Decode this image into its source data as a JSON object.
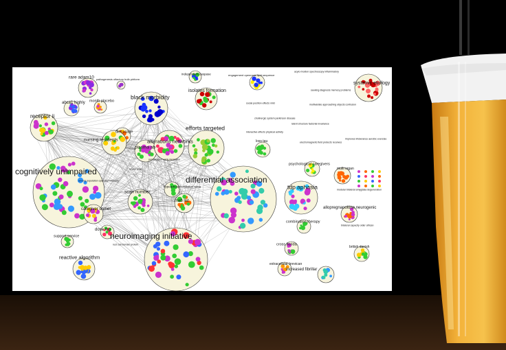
{
  "scene": {
    "background_color": "#000000",
    "glass": "beer-glass-icon"
  },
  "network": {
    "clusters": [
      {
        "id": "c1",
        "label": "rare adam10",
        "size": "m",
        "colors": [
          "#8a2be2",
          "#cc33cc"
        ]
      },
      {
        "id": "c2",
        "label": "pathogenesis olfactory bulb piriform",
        "size": "xs",
        "colors": [
          "#9933cc"
        ]
      },
      {
        "id": "c3",
        "label": "abca1 highly",
        "size": "s",
        "colors": [
          "#8a2be2",
          "#3366ff"
        ]
      },
      {
        "id": "c4",
        "label": "month placebo",
        "size": "s",
        "colors": [
          "#ff9900",
          "#cc33cc"
        ]
      },
      {
        "id": "c5",
        "label": "black morbidity",
        "size": "l",
        "colors": [
          "#1a33ff",
          "#0000cc"
        ]
      },
      {
        "id": "c6",
        "label": "receptor ii",
        "size": "l",
        "colors": [
          "#33cc33",
          "#cc33cc",
          "#ffcc00"
        ]
      },
      {
        "id": "c7",
        "label": "diet usage",
        "size": "s",
        "colors": [
          "#ffcc00",
          "#ff6600"
        ]
      },
      {
        "id": "c8",
        "label": "nursing residents",
        "size": "m",
        "colors": [
          "#33cc33",
          "#ffcc00"
        ]
      },
      {
        "id": "c9",
        "label": "plasma ab",
        "size": "m",
        "colors": [
          "#33cc33",
          "#cc33cc"
        ]
      },
      {
        "id": "c10",
        "label": "alterations networks",
        "size": "l",
        "colors": [
          "#ff3366",
          "#cc33cc",
          "#33cc33"
        ]
      },
      {
        "id": "c11",
        "label": "efforts targeted",
        "size": "l",
        "colors": [
          "#33cc33",
          "#99cc33"
        ]
      },
      {
        "id": "c12",
        "label": "isolates formation",
        "size": "m",
        "colors": [
          "#cc0000",
          "#33cc33"
        ]
      },
      {
        "id": "c13",
        "label": "independent caspase",
        "size": "s",
        "colors": [
          "#1a33ff",
          "#33cc33"
        ]
      },
      {
        "id": "c14",
        "label": "engagement openness lipid sequence",
        "size": "s",
        "colors": [
          "#ffee00",
          "#1a33ff"
        ]
      },
      {
        "id": "c15",
        "label": "cognitively unimpaired",
        "size": "xl",
        "colors": [
          "#cc33cc",
          "#33cc33",
          "#3399ff"
        ]
      },
      {
        "id": "c16",
        "label": "differential association",
        "size": "xl",
        "colors": [
          "#33ccaa",
          "#3399ff",
          "#cc33cc"
        ]
      },
      {
        "id": "c17",
        "label": "scan number",
        "size": "m",
        "colors": [
          "#33cc33",
          "#cc33cc"
        ]
      },
      {
        "id": "c18",
        "label": "hyperphosphorylation sirna",
        "size": "s",
        "colors": [
          "#33cc33"
        ]
      },
      {
        "id": "c19",
        "label": "mab list",
        "size": "m",
        "colors": [
          "#33cc33",
          "#ff6600"
        ]
      },
      {
        "id": "c20",
        "label": "caregiver unmet",
        "size": "m",
        "colors": [
          "#cc33cc",
          "#ffcc00"
        ]
      },
      {
        "id": "c21",
        "label": "dose mg",
        "size": "s",
        "colors": [
          "#ff3366",
          "#33cc33"
        ]
      },
      {
        "id": "c22",
        "label": "neuroimaging initiative",
        "size": "xl",
        "colors": [
          "#33cc33",
          "#3366ff",
          "#ff3333",
          "#cc33cc"
        ]
      },
      {
        "id": "c23",
        "label": "support service",
        "size": "s",
        "colors": [
          "#33cc33"
        ]
      },
      {
        "id": "c24",
        "label": "reactive algorithm",
        "size": "m",
        "colors": [
          "#ffcc00",
          "#3366ff"
        ]
      },
      {
        "id": "c25",
        "label": "tdp aphasia",
        "size": "l",
        "colors": [
          "#33ccff",
          "#cc33cc"
        ]
      },
      {
        "id": "c26",
        "label": "systemic etiology",
        "size": "m",
        "colors": [
          "#cc0000",
          "#ff6666"
        ]
      },
      {
        "id": "c27",
        "label": "psychological caregivers",
        "size": "s",
        "colors": [
          "#33cc33",
          "#ffee00"
        ]
      },
      {
        "id": "c28",
        "label": "multi organ",
        "size": "s",
        "colors": [
          "#ff6600"
        ]
      },
      {
        "id": "c29",
        "label": "allopregnanolone neurogenic",
        "size": "s",
        "colors": [
          "#cc33cc",
          "#ff6600"
        ]
      },
      {
        "id": "c30",
        "label": "combination therapy",
        "size": "s",
        "colors": [
          "#33cc33"
        ]
      },
      {
        "id": "c31",
        "label": "cross florida",
        "size": "s",
        "colors": [
          "#cc33cc",
          "#33cc33"
        ]
      },
      {
        "id": "c32",
        "label": "extracellular brevican",
        "size": "s",
        "colors": [
          "#ff9900",
          "#cc33cc"
        ]
      },
      {
        "id": "c33",
        "label": "increased fibrillar",
        "size": "s",
        "colors": [
          "#33ccaa",
          "#3399ff"
        ]
      },
      {
        "id": "c34",
        "label": "british danish",
        "size": "s",
        "colors": [
          "#33cc33",
          "#ffcc00"
        ]
      },
      {
        "id": "c35",
        "label": "loss tau",
        "size": "s",
        "colors": [
          "#33cc33"
        ]
      }
    ],
    "small_labels": [
      "acyio modion spectroscopy inflammatory",
      "seeking diagnosis memory problems",
      "multivariate approaching objects confusion",
      "social position effects mild",
      "cholinergic system parkinson disease",
      "latent structure factorial invariance",
      "interactive effects physical activity",
      "improves intolerance aerobic exercise",
      "electromagnetic field protects receives",
      "modular bilateral amygdala degeneration",
      "bilateral capacity older african",
      "rust cell domain protein",
      "among population operation biversity",
      "heavy arow",
      "personalized early measures"
    ]
  }
}
